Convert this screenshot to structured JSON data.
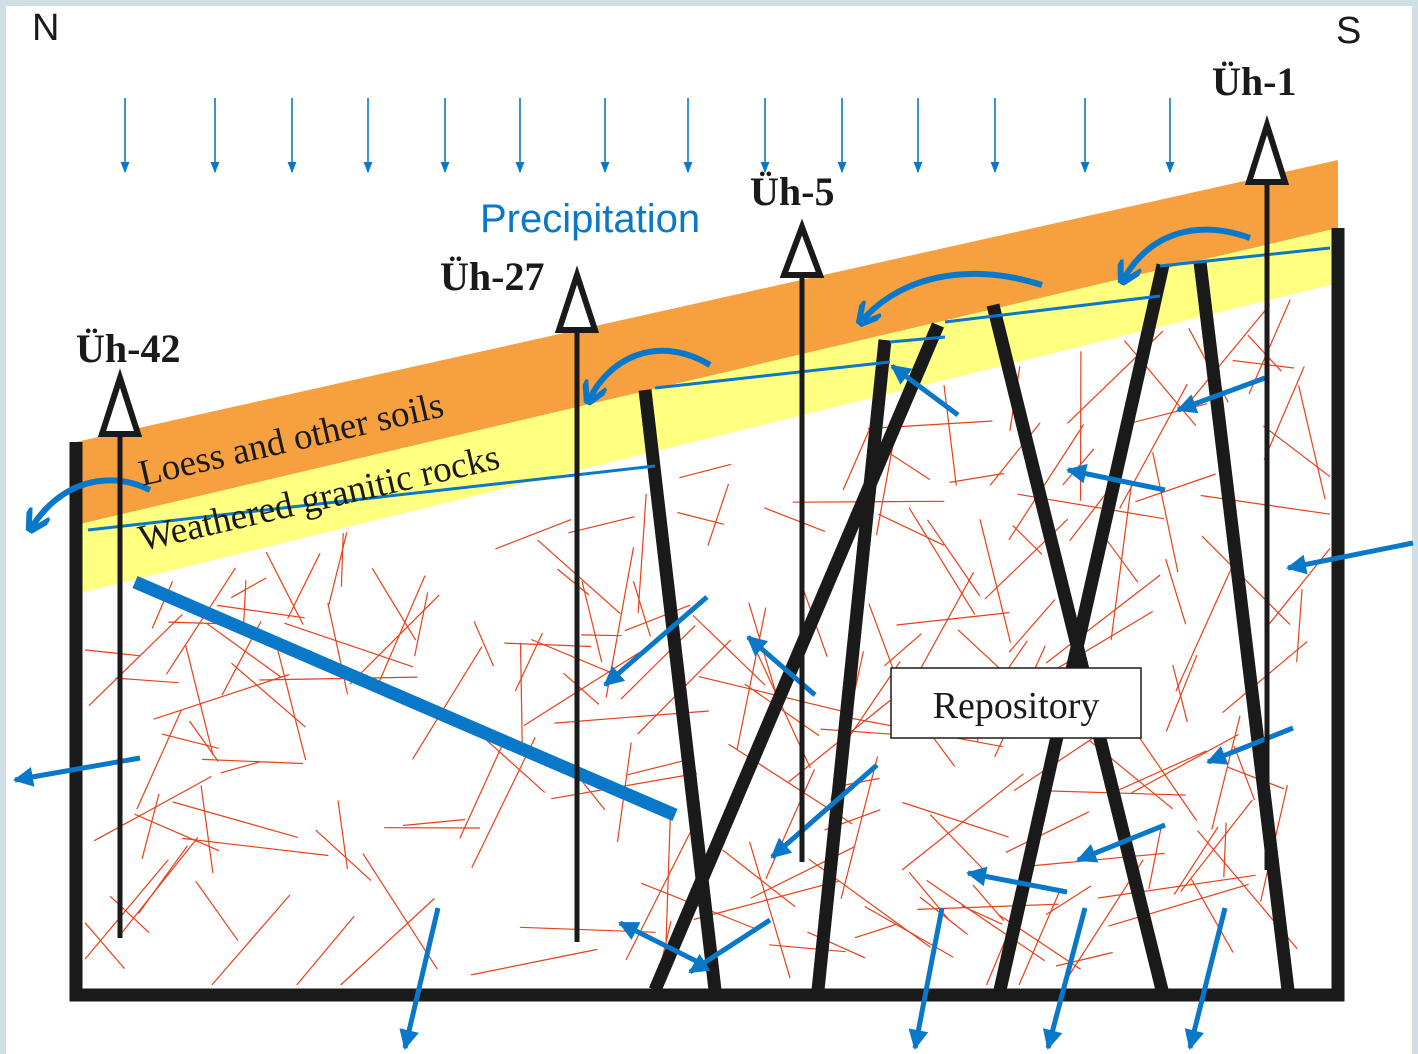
{
  "compass": {
    "north": "N",
    "south": "S"
  },
  "labels": {
    "precipitation": "Precipitation",
    "loess": "Loess and other soils",
    "weathered": "Weathered granitic rocks",
    "repository": "Repository"
  },
  "boreholes": [
    {
      "id": "uh42",
      "label": "Üh-42"
    },
    {
      "id": "uh27",
      "label": "Üh-27"
    },
    {
      "id": "uh5",
      "label": "Üh-5"
    },
    {
      "id": "uh1",
      "label": "Üh-1"
    }
  ],
  "colors": {
    "frame": "#cfdfe6",
    "soil": "#f7a040",
    "weathered": "#ffff80",
    "flow": "#0a78c8",
    "fracture": "#e8401a",
    "fault": "#1a1a1a"
  }
}
